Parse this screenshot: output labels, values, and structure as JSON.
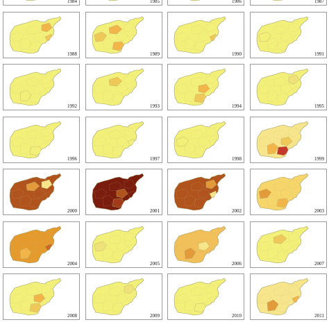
{
  "panels": [
    {
      "year": "1984",
      "base": "#f3f07a",
      "hot": [
        "#f3f07a"
      ]
    },
    {
      "year": "1985",
      "base": "#f3f07a",
      "hot": [
        "#f3f07a"
      ]
    },
    {
      "year": "1986",
      "base": "#f3f07a",
      "hot": [
        "#f3f07a"
      ]
    },
    {
      "year": "1987",
      "base": "#f3f07a",
      "hot": [
        "#f3f07a"
      ]
    },
    {
      "year": "1988",
      "base": "#f3f07a",
      "hot": [
        "#f2b54a",
        "#efc85a"
      ]
    },
    {
      "year": "1989",
      "base": "#f3f07a",
      "hot": [
        "#f2b54a",
        "#efc85a",
        "#f2b54a"
      ]
    },
    {
      "year": "1990",
      "base": "#f3f07a",
      "hot": [
        "#efc85a"
      ]
    },
    {
      "year": "1991",
      "base": "#f3f07a",
      "hot": [
        "#f3f07a"
      ]
    },
    {
      "year": "1992",
      "base": "#f3f07a",
      "hot": [
        "#f3f07a"
      ]
    },
    {
      "year": "1993",
      "base": "#f3f07a",
      "hot": [
        "#efc85a"
      ]
    },
    {
      "year": "1994",
      "base": "#f3f07a",
      "hot": [
        "#f2b54a",
        "#efc85a"
      ]
    },
    {
      "year": "1995",
      "base": "#f3f07a",
      "hot": [
        "#efe27a"
      ]
    },
    {
      "year": "1996",
      "base": "#f3f07a",
      "hot": [
        "#f3f07a"
      ]
    },
    {
      "year": "1997",
      "base": "#f3f07a",
      "hot": [
        "#f3f07a"
      ]
    },
    {
      "year": "1998",
      "base": "#f3f07a",
      "hot": [
        "#f3f07a"
      ]
    },
    {
      "year": "1999",
      "base": "#f6e58a",
      "hot": [
        "#f2b54a",
        "#efc85a",
        "#c0392b"
      ]
    },
    {
      "year": "2000",
      "base": "#b0531d",
      "hot": [
        "#e39a3a",
        "#f6e58a"
      ]
    },
    {
      "year": "2001",
      "base": "#7a1d0e",
      "hot": [
        "#b0531d",
        "#a23b1a"
      ]
    },
    {
      "year": "2002",
      "base": "#b0531d",
      "hot": [
        "#e39a3a",
        "#f6e58a"
      ]
    },
    {
      "year": "2003",
      "base": "#f6d56a",
      "hot": [
        "#f2b54a",
        "#e39a3a"
      ]
    },
    {
      "year": "2004",
      "base": "#e49a2c",
      "hot": [
        "#c86a1f",
        "#f2b54a"
      ]
    },
    {
      "year": "2005",
      "base": "#f3f07a",
      "hot": [
        "#efe27a"
      ]
    },
    {
      "year": "2006",
      "base": "#f2c05a",
      "hot": [
        "#e39a3a",
        "#f6e58a"
      ]
    },
    {
      "year": "2007",
      "base": "#f3f07a",
      "hot": [
        "#efc85a"
      ]
    },
    {
      "year": "2008",
      "base": "#f3f07a",
      "hot": [
        "#f2b54a",
        "#efc85a"
      ]
    },
    {
      "year": "2009",
      "base": "#f3f07a",
      "hot": [
        "#efe27a"
      ]
    },
    {
      "year": "2010",
      "base": "#f3f07a",
      "hot": [
        "#f3f07a"
      ]
    },
    {
      "year": "2011",
      "base": "#f6e58a",
      "hot": [
        "#f2b54a",
        "#e39a3a"
      ]
    }
  ]
}
